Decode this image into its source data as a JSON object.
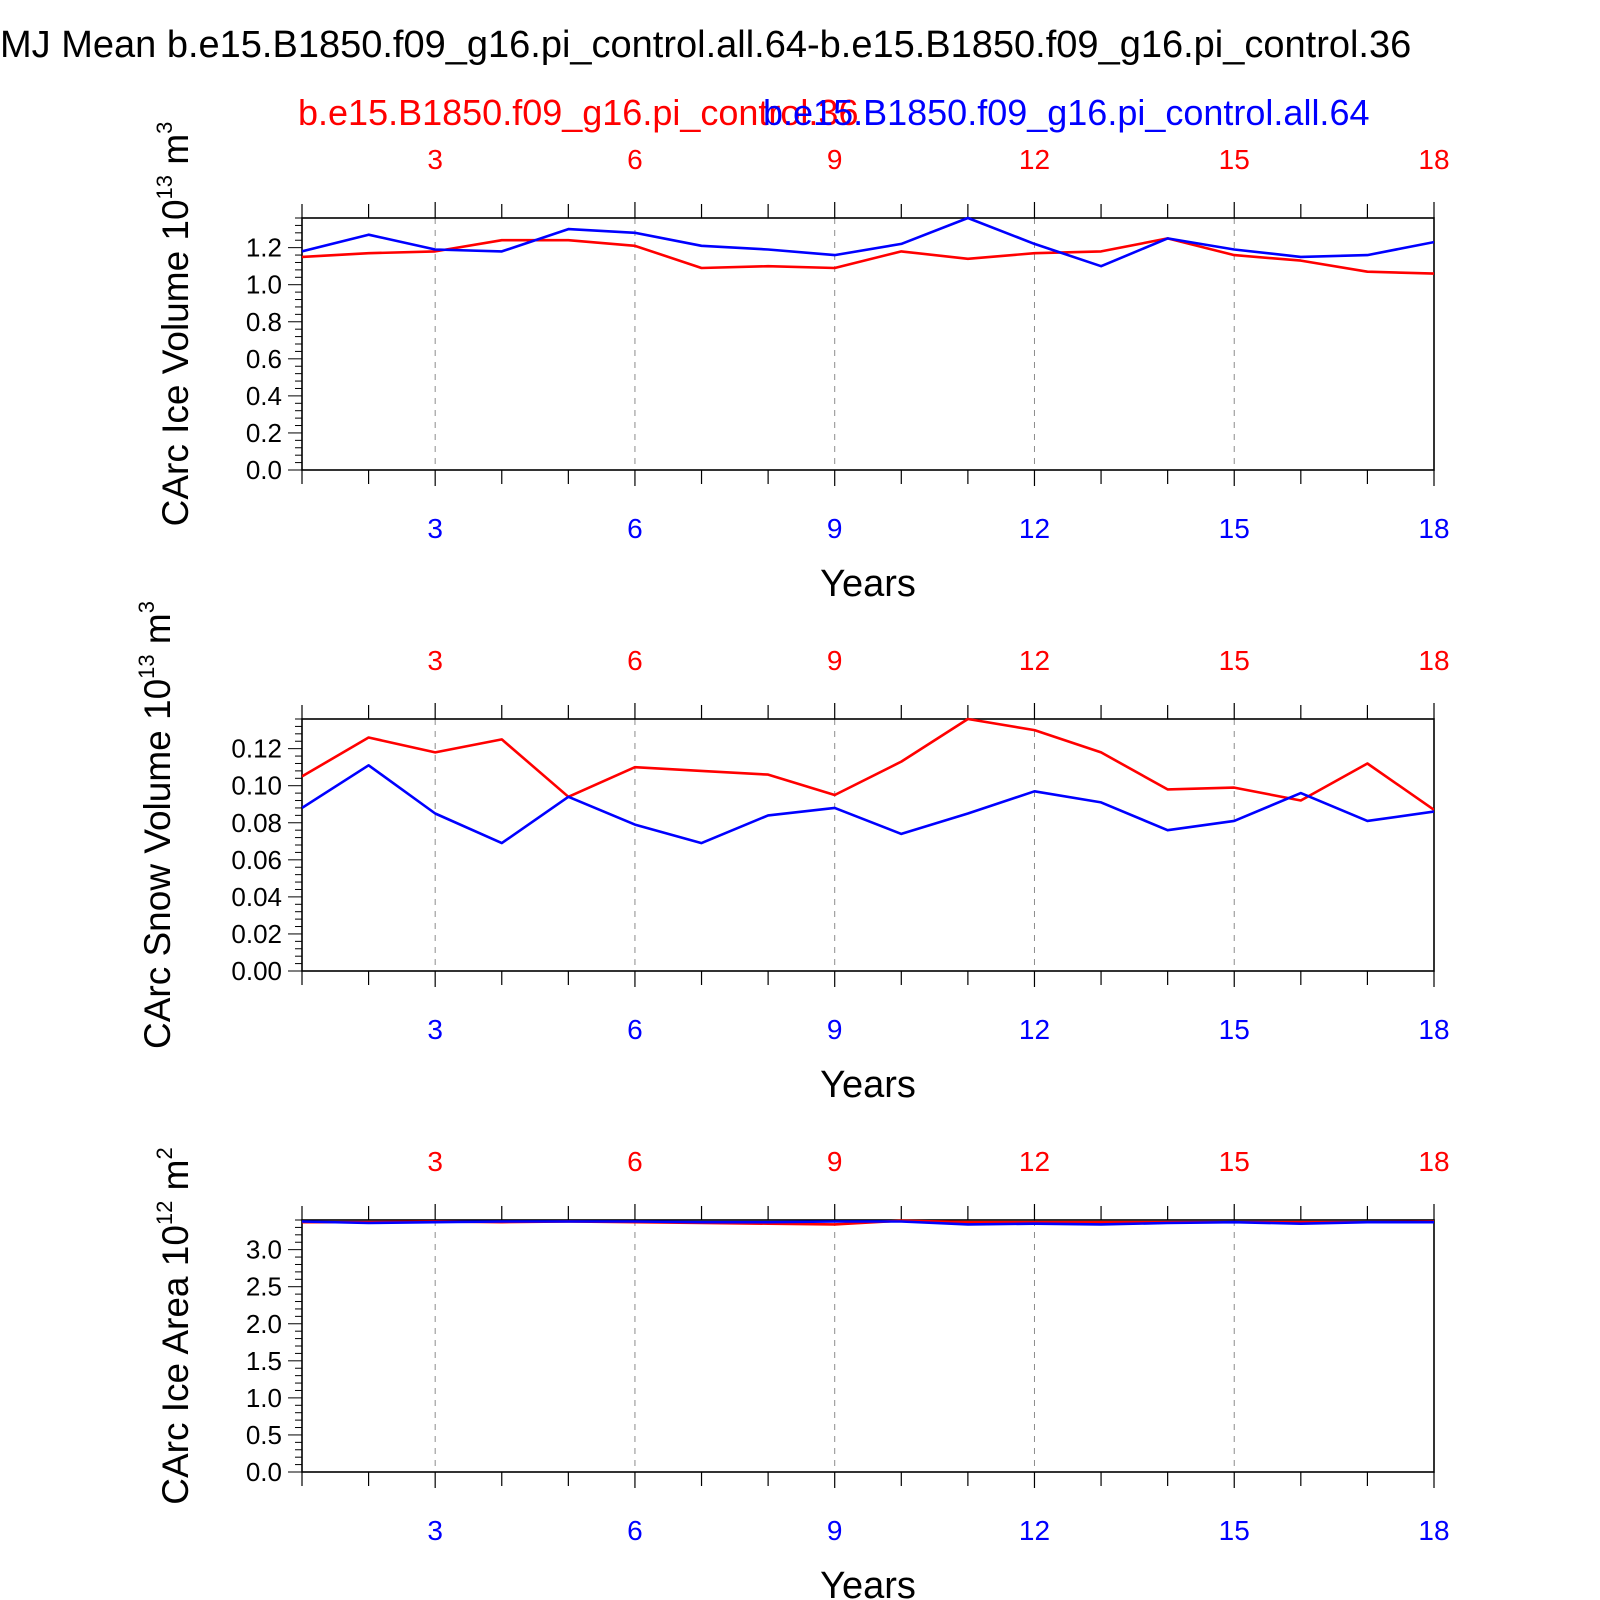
{
  "title": "MJ Mean b.e15.B1850.f09_g16.pi_control.all.64-b.e15.B1850.f09_g16.pi_control.36",
  "legend": {
    "red_label": "b.e15.B1850.f09_g16.pi_control.36",
    "blue_label": "b.e15.B1850.f09_g16.pi_control.all.64"
  },
  "colors": {
    "red": "#ff0000",
    "blue": "#0000ff",
    "axis": "#000000",
    "grid": "#8c8c8c"
  },
  "chart_data": [
    {
      "type": "line",
      "ylabel_main": "CArc Ice Volume 10",
      "ylabel_exp": "13",
      "ylabel_unit": "m",
      "ylabel_unit_exp": "3",
      "xlabel": "Years",
      "xlim": [
        1,
        18
      ],
      "ylim": [
        0,
        1.36
      ],
      "xticks": [
        "3",
        "6",
        "9",
        "12",
        "15",
        "18"
      ],
      "yticks": [
        "0.0",
        "0.2",
        "0.4",
        "0.6",
        "0.8",
        "1.0",
        "1.2"
      ],
      "x": [
        1,
        2,
        3,
        4,
        5,
        6,
        7,
        8,
        9,
        10,
        11,
        12,
        13,
        14,
        15,
        16,
        17,
        18
      ],
      "series": [
        {
          "color": "red",
          "values": [
            1.15,
            1.17,
            1.18,
            1.24,
            1.24,
            1.21,
            1.09,
            1.1,
            1.09,
            1.18,
            1.14,
            1.17,
            1.18,
            1.25,
            1.16,
            1.13,
            1.07,
            1.06
          ]
        },
        {
          "color": "blue",
          "values": [
            1.18,
            1.27,
            1.19,
            1.18,
            1.3,
            1.28,
            1.21,
            1.19,
            1.16,
            1.22,
            1.36,
            1.22,
            1.1,
            1.25,
            1.19,
            1.15,
            1.16,
            1.23
          ]
        }
      ]
    },
    {
      "type": "line",
      "ylabel_main": "CArc Snow Volume 10",
      "ylabel_exp": "13",
      "ylabel_unit": "m",
      "ylabel_unit_exp": "3",
      "xlabel": "Years",
      "xlim": [
        1,
        18
      ],
      "ylim": [
        0,
        0.136
      ],
      "xticks": [
        "3",
        "6",
        "9",
        "12",
        "15",
        "18"
      ],
      "yticks": [
        "0.00",
        "0.02",
        "0.04",
        "0.06",
        "0.08",
        "0.10",
        "0.12"
      ],
      "x": [
        1,
        2,
        3,
        4,
        5,
        6,
        7,
        8,
        9,
        10,
        11,
        12,
        13,
        14,
        15,
        16,
        17,
        18
      ],
      "series": [
        {
          "color": "red",
          "values": [
            0.105,
            0.126,
            0.118,
            0.125,
            0.094,
            0.11,
            0.108,
            0.106,
            0.095,
            0.113,
            0.136,
            0.13,
            0.118,
            0.098,
            0.099,
            0.092,
            0.112,
            0.087
          ]
        },
        {
          "color": "blue",
          "values": [
            0.088,
            0.111,
            0.085,
            0.069,
            0.094,
            0.079,
            0.069,
            0.084,
            0.088,
            0.074,
            0.085,
            0.097,
            0.091,
            0.076,
            0.081,
            0.096,
            0.081,
            0.086
          ]
        }
      ]
    },
    {
      "type": "line",
      "ylabel_main": "CArc Ice Area 10",
      "ylabel_exp": "12",
      "ylabel_unit": "m",
      "ylabel_unit_exp": "2",
      "xlabel": "Years",
      "xlim": [
        1,
        18
      ],
      "ylim": [
        0,
        3.4
      ],
      "xticks": [
        "3",
        "6",
        "9",
        "12",
        "15",
        "18"
      ],
      "yticks": [
        "0.0",
        "0.5",
        "1.0",
        "1.5",
        "2.0",
        "2.5",
        "3.0"
      ],
      "x": [
        1,
        2,
        3,
        4,
        5,
        6,
        7,
        8,
        9,
        10,
        11,
        12,
        13,
        14,
        15,
        16,
        17,
        18
      ],
      "series": [
        {
          "color": "red",
          "values": [
            3.37,
            3.37,
            3.38,
            3.37,
            3.38,
            3.37,
            3.36,
            3.35,
            3.34,
            3.39,
            3.37,
            3.37,
            3.37,
            3.37,
            3.37,
            3.37,
            3.37,
            3.38
          ]
        },
        {
          "color": "blue",
          "values": [
            3.38,
            3.36,
            3.37,
            3.38,
            3.38,
            3.38,
            3.37,
            3.37,
            3.38,
            3.38,
            3.34,
            3.35,
            3.34,
            3.36,
            3.37,
            3.35,
            3.37,
            3.37
          ]
        }
      ]
    }
  ]
}
